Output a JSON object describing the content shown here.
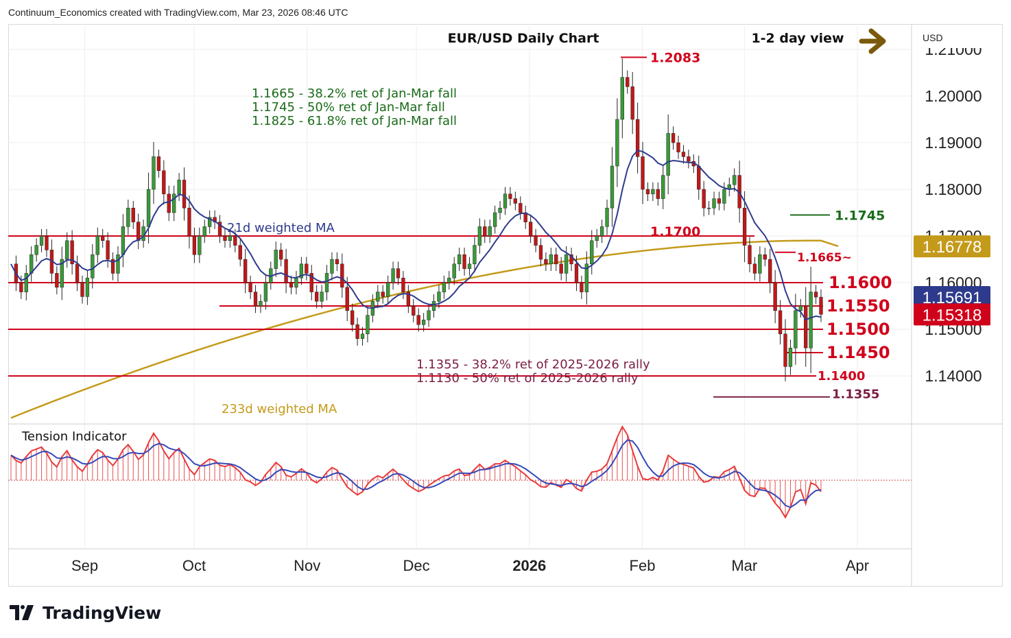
{
  "header": "Continuum_Economics created with TradingView.com, Mar 23, 2026 08:46 UTC",
  "logo_text": "TradingView",
  "currency": "USD",
  "title": "EUR/USD Daily Chart",
  "view_label": "1-2 day view",
  "chart_data": {
    "type": "candlestick",
    "title": "EUR/USD Daily Chart",
    "ylim": [
      1.13,
      1.215
    ],
    "y_ticks": [
      1.14,
      1.15,
      1.16,
      1.17,
      1.18,
      1.19,
      1.2,
      1.21
    ],
    "y_tick_labels": [
      "1.14000",
      "1.15000",
      "1.16000",
      "1.17000",
      "1.18000",
      "1.19000",
      "1.20000",
      "1.21000"
    ],
    "x_months": [
      {
        "label": "Sep",
        "bold": false,
        "date": "2025-09-01"
      },
      {
        "label": "Oct",
        "bold": false,
        "date": "2025-10-01"
      },
      {
        "label": "Nov",
        "bold": false,
        "date": "2025-11-01"
      },
      {
        "label": "Dec",
        "bold": false,
        "date": "2025-12-01"
      },
      {
        "label": "2026",
        "bold": true,
        "date": "2026-01-01"
      },
      {
        "label": "Feb",
        "bold": false,
        "date": "2026-02-01"
      },
      {
        "label": "Mar",
        "bold": false,
        "date": "2026-03-01"
      },
      {
        "label": "Apr",
        "bold": false,
        "date": "2026-04-01"
      }
    ],
    "colors": {
      "up": "#3a9a3a",
      "down": "#c11818",
      "ma21": "#2e3a8c",
      "ma233": "#c49a1a",
      "level": "#d0021b",
      "fib": "#1a6b1a",
      "fib2": "#7a1e45"
    },
    "series_ohlc": [
      1.164,
      1.16,
      1.158,
      1.162,
      1.166,
      1.168,
      1.17,
      1.167,
      1.162,
      1.159,
      1.165,
      1.169,
      1.164,
      1.16,
      1.157,
      1.161,
      1.166,
      1.17,
      1.169,
      1.165,
      1.162,
      1.166,
      1.172,
      1.176,
      1.173,
      1.169,
      1.172,
      1.18,
      1.187,
      1.184,
      1.179,
      1.175,
      1.179,
      1.182,
      1.176,
      1.17,
      1.166,
      1.17,
      1.172,
      1.174,
      1.173,
      1.17,
      1.169,
      1.17,
      1.168,
      1.165,
      1.16,
      1.158,
      1.155,
      1.156,
      1.16,
      1.163,
      1.167,
      1.165,
      1.16,
      1.159,
      1.161,
      1.164,
      1.162,
      1.158,
      1.156,
      1.158,
      1.162,
      1.165,
      1.164,
      1.159,
      1.154,
      1.151,
      1.148,
      1.149,
      1.153,
      1.156,
      1.158,
      1.157,
      1.16,
      1.163,
      1.161,
      1.158,
      1.155,
      1.153,
      1.151,
      1.152,
      1.154,
      1.156,
      1.158,
      1.16,
      1.161,
      1.164,
      1.166,
      1.163,
      1.164,
      1.168,
      1.172,
      1.17,
      1.172,
      1.175,
      1.176,
      1.179,
      1.178,
      1.177,
      1.175,
      1.173,
      1.17,
      1.168,
      1.165,
      1.164,
      1.166,
      1.164,
      1.162,
      1.166,
      1.164,
      1.16,
      1.158,
      1.164,
      1.169,
      1.17,
      1.172,
      1.176,
      1.185,
      1.195,
      1.204,
      1.202,
      1.195,
      1.187,
      1.18,
      1.179,
      1.18,
      1.178,
      1.183,
      1.192,
      1.19,
      1.188,
      1.187,
      1.186,
      1.185,
      1.18,
      1.176,
      1.176,
      1.178,
      1.177,
      1.18,
      1.181,
      1.183,
      1.176,
      1.168,
      1.164,
      1.162,
      1.166,
      1.165,
      1.16,
      1.154,
      1.149,
      1.142,
      1.146,
      1.154,
      1.155,
      1.146,
      1.158,
      1.1569,
      1.1532
    ],
    "levels": [
      {
        "label": "1.1700",
        "value": 1.17
      },
      {
        "label": "1.1600",
        "value": 1.16
      },
      {
        "label": "1.1550",
        "value": 1.155
      },
      {
        "label": "1.1500",
        "value": 1.15
      },
      {
        "label": "1.1450",
        "value": 1.145
      },
      {
        "label": "1.1400",
        "value": 1.14
      },
      {
        "label": "1.1355",
        "value": 1.1355
      },
      {
        "label": "1.1745",
        "value": 1.1745
      },
      {
        "label": "1.1665~",
        "value": 1.1665
      },
      {
        "label": "1.2083",
        "value": 1.2083
      }
    ],
    "annotations": {
      "fib_jan_mar": [
        "1.1665 - 38.2% ret of Jan-Mar fall",
        "1.1745 - 50% ret of Jan-Mar fall",
        "1.1825 - 61.8% ret of Jan-Mar fall"
      ],
      "fib_rally": [
        "1.1355 - 38.2% ret of 2025-2026 rally",
        "1.1130 - 50% ret of 2025-2026 rally"
      ],
      "ma21_label": "21d weighted MA",
      "ma233_label": "233d weighted MA",
      "tension_label": "Tension Indicator"
    },
    "price_tags": [
      {
        "value": "1.16778",
        "color": "#c49a1a"
      },
      {
        "value": "1.15691",
        "color": "#2e3a8c"
      },
      {
        "value": "1.15318",
        "color": "#d0021b"
      }
    ]
  }
}
